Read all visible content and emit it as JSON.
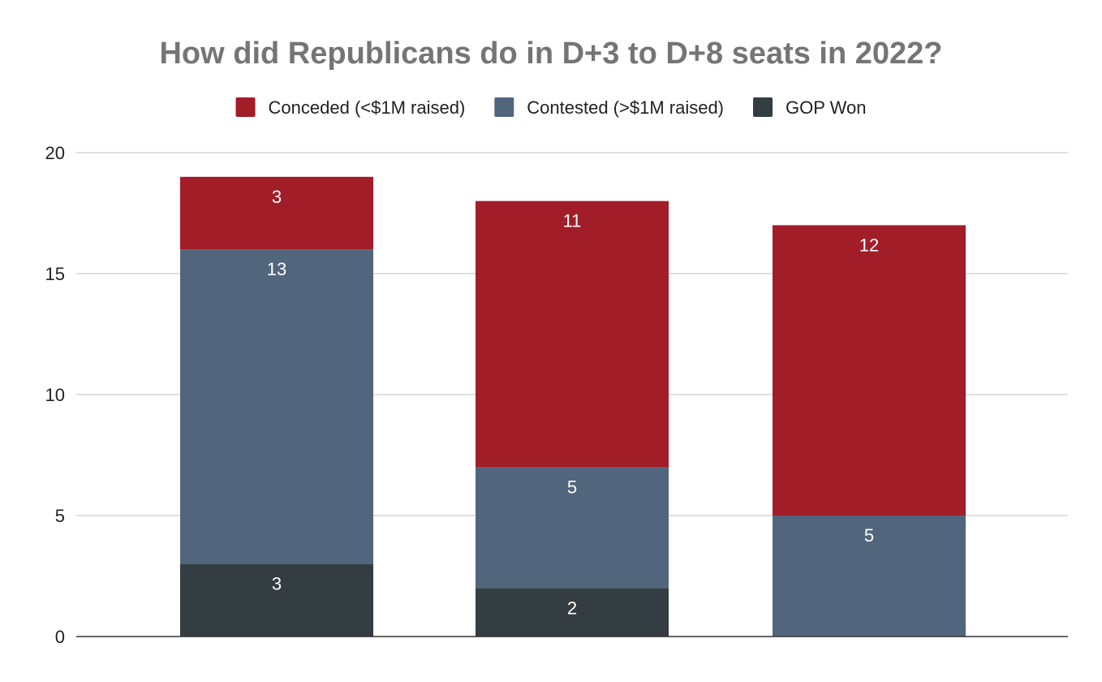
{
  "chart_data": {
    "type": "bar",
    "stacked": true,
    "title": "How did Republicans do in D+3 to D+8 seats in 2022?",
    "xlabel": "",
    "ylabel": "",
    "categories": [
      "",
      "",
      ""
    ],
    "ylim": [
      0,
      20
    ],
    "yticks": [
      "0",
      "5",
      "10",
      "15",
      "20"
    ],
    "grid": true,
    "legend_position": "top",
    "series": [
      {
        "name": "GOP Won",
        "color": "#343d41",
        "values": [
          3,
          2,
          0
        ],
        "labels": [
          "3",
          "2",
          ""
        ]
      },
      {
        "name": "Contested (>$1M raised)",
        "color": "#51667c",
        "values": [
          13,
          5,
          5
        ],
        "labels": [
          "13",
          "5",
          "5"
        ]
      },
      {
        "name": "Conceded (<$1M raised)",
        "color": "#a11d28",
        "values": [
          3,
          11,
          12
        ],
        "labels": [
          "3",
          "11",
          "12"
        ]
      }
    ],
    "legend_order": [
      2,
      1,
      0
    ]
  }
}
